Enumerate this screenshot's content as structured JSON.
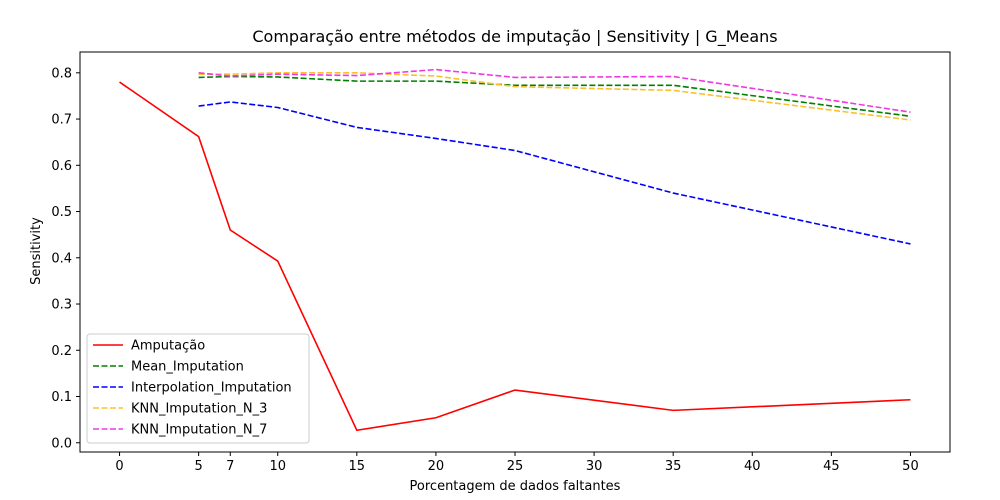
{
  "chart_data": {
    "type": "line",
    "title": "Comparação entre métodos de imputação | Sensitivity | G_Means",
    "xlabel": "Porcentagem de dados faltantes",
    "ylabel": "Sensitivity",
    "xticks": [
      0,
      5,
      7,
      10,
      15,
      20,
      25,
      30,
      35,
      40,
      45,
      50
    ],
    "yticks": [
      0.0,
      0.1,
      0.2,
      0.3,
      0.4,
      0.5,
      0.6,
      0.7,
      0.8
    ],
    "xlim": [
      -2.5,
      52.5
    ],
    "ylim": [
      -0.02,
      0.845
    ],
    "grid": false,
    "legend_position": "lower-left",
    "series": [
      {
        "name": "Amputação",
        "color": "#ff0000",
        "style": "solid",
        "x": [
          0,
          5,
          7,
          10,
          15,
          20,
          25,
          35,
          50
        ],
        "y": [
          0.78,
          0.662,
          0.46,
          0.393,
          0.027,
          0.054,
          0.114,
          0.07,
          0.093
        ]
      },
      {
        "name": "Mean_Imputation",
        "color": "#008000",
        "style": "dashed",
        "x": [
          5,
          7,
          10,
          15,
          20,
          25,
          35,
          50
        ],
        "y": [
          0.79,
          0.792,
          0.791,
          0.782,
          0.782,
          0.773,
          0.773,
          0.706
        ]
      },
      {
        "name": "Interpolation_Imputation",
        "color": "#0000ff",
        "style": "dashed",
        "x": [
          5,
          7,
          10,
          15,
          20,
          25,
          35,
          50
        ],
        "y": [
          0.728,
          0.737,
          0.725,
          0.682,
          0.658,
          0.632,
          0.54,
          0.43
        ]
      },
      {
        "name": "KNN_Imputation_N_3",
        "color": "#fbc02d",
        "style": "dashed",
        "x": [
          5,
          7,
          10,
          15,
          20,
          25,
          35,
          50
        ],
        "y": [
          0.797,
          0.797,
          0.8,
          0.8,
          0.793,
          0.77,
          0.762,
          0.698
        ]
      },
      {
        "name": "KNN_Imputation_N_7",
        "color": "#ee3ae4",
        "style": "dashed",
        "x": [
          5,
          7,
          10,
          15,
          20,
          25,
          35,
          50
        ],
        "y": [
          0.8,
          0.793,
          0.797,
          0.794,
          0.807,
          0.79,
          0.792,
          0.715
        ]
      }
    ]
  }
}
